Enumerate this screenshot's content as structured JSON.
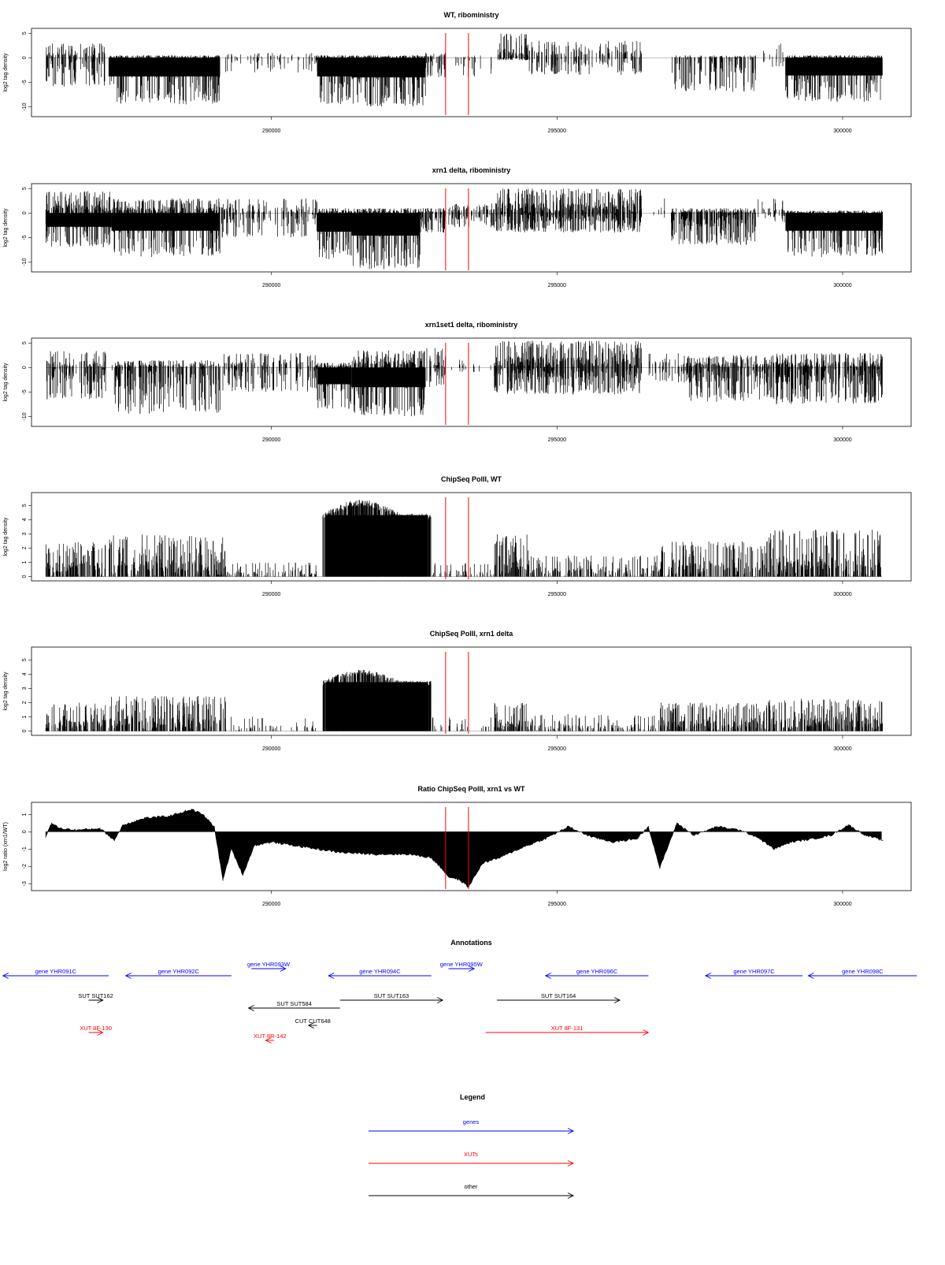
{
  "chart_data": [
    {
      "type": "bar",
      "title": "WT, riboministry",
      "ylabel": "log2 tag density",
      "yticks": [
        5,
        0,
        -5,
        -10
      ],
      "ylim": [
        -12,
        6
      ],
      "xlim": [
        285800,
        301200
      ],
      "xticks": [
        290000,
        295000,
        300000
      ],
      "xtick_labels": [
        "290000",
        "295000",
        "300000"
      ],
      "red_lines": [
        293050,
        293450
      ],
      "regions": [
        {
          "start": 286050,
          "end": 287100,
          "max": 3,
          "min": -6,
          "density": 0.55
        },
        {
          "start": 287150,
          "end": 289100,
          "max": 0.5,
          "min": -9.5,
          "density": 0.95
        },
        {
          "start": 289150,
          "end": 290800,
          "max": 1,
          "min": -3,
          "density": 0.2
        },
        {
          "start": 290800,
          "end": 291400,
          "max": 0.5,
          "min": -9.5,
          "density": 1.0
        },
        {
          "start": 291400,
          "end": 292700,
          "max": 0.5,
          "min": -10,
          "density": 1.0
        },
        {
          "start": 292700,
          "end": 293050,
          "max": 1,
          "min": -4,
          "density": 0.6
        },
        {
          "start": 293100,
          "end": 293900,
          "max": 0.5,
          "min": -4,
          "density": 0.15
        },
        {
          "start": 293950,
          "end": 294500,
          "max": 5,
          "min": -0.5,
          "density": 0.8
        },
        {
          "start": 294500,
          "end": 296500,
          "max": 3.5,
          "min": -3.5,
          "density": 0.4
        },
        {
          "start": 297000,
          "end": 298500,
          "max": 0.5,
          "min": -7,
          "density": 0.55
        },
        {
          "start": 298500,
          "end": 299000,
          "max": 3,
          "min": -2,
          "density": 0.15
        },
        {
          "start": 299000,
          "end": 300700,
          "max": 0.5,
          "min": -9,
          "density": 0.95
        }
      ]
    },
    {
      "type": "bar",
      "title": "xrn1 delta, riboministry",
      "ylabel": "log2 tag density",
      "yticks": [
        5,
        0,
        -5,
        -10
      ],
      "ylim": [
        -12,
        6
      ],
      "xlim": [
        285800,
        301200
      ],
      "xticks": [
        290000,
        295000,
        300000
      ],
      "xtick_labels": [
        "290000",
        "295000",
        "300000"
      ],
      "red_lines": [
        293050,
        293450
      ],
      "regions": [
        {
          "start": 286050,
          "end": 287200,
          "max": 4.5,
          "min": -7,
          "density": 0.95
        },
        {
          "start": 287200,
          "end": 289100,
          "max": 3,
          "min": -9,
          "density": 0.95
        },
        {
          "start": 289100,
          "end": 290800,
          "max": 3,
          "min": -5,
          "density": 0.45
        },
        {
          "start": 290800,
          "end": 291400,
          "max": 1,
          "min": -9.5,
          "density": 1.0
        },
        {
          "start": 291400,
          "end": 292600,
          "max": 1,
          "min": -11.5,
          "density": 1.0
        },
        {
          "start": 292600,
          "end": 293050,
          "max": 1,
          "min": -4,
          "density": 0.8
        },
        {
          "start": 293100,
          "end": 293900,
          "max": 2,
          "min": -3,
          "density": 0.5
        },
        {
          "start": 293900,
          "end": 296500,
          "max": 5,
          "min": -4,
          "density": 0.95
        },
        {
          "start": 296600,
          "end": 297000,
          "max": 3,
          "min": -1,
          "density": 0.1
        },
        {
          "start": 297000,
          "end": 298500,
          "max": 1,
          "min": -6.5,
          "density": 0.9
        },
        {
          "start": 298500,
          "end": 299000,
          "max": 3,
          "min": -2,
          "density": 0.3
        },
        {
          "start": 299000,
          "end": 300700,
          "max": 0.5,
          "min": -9,
          "density": 0.95
        }
      ]
    },
    {
      "type": "bar",
      "title": "xrn1set1 delta, riboministry",
      "ylabel": "log2 tag density",
      "yticks": [
        5,
        0,
        -5,
        -10
      ],
      "ylim": [
        -12,
        6
      ],
      "xlim": [
        285800,
        301200
      ],
      "xticks": [
        290000,
        295000,
        300000
      ],
      "xtick_labels": [
        "290000",
        "295000",
        "300000"
      ],
      "red_lines": [
        293050,
        293450
      ],
      "regions": [
        {
          "start": 286050,
          "end": 287100,
          "max": 3.5,
          "min": -6.5,
          "density": 0.6
        },
        {
          "start": 287200,
          "end": 289100,
          "max": 1.5,
          "min": -9.5,
          "density": 0.7
        },
        {
          "start": 289100,
          "end": 290800,
          "max": 3,
          "min": -5,
          "density": 0.45
        },
        {
          "start": 290800,
          "end": 291400,
          "max": 1,
          "min": -8.5,
          "density": 0.95
        },
        {
          "start": 291400,
          "end": 292700,
          "max": 3.5,
          "min": -10,
          "density": 0.95
        },
        {
          "start": 292700,
          "end": 293050,
          "max": 4,
          "min": -4,
          "density": 0.5
        },
        {
          "start": 293100,
          "end": 293900,
          "max": 2,
          "min": -1,
          "density": 0.1
        },
        {
          "start": 293900,
          "end": 296500,
          "max": 5.5,
          "min": -5.5,
          "density": 0.9
        },
        {
          "start": 296600,
          "end": 297200,
          "max": 3,
          "min": -3,
          "density": 0.35
        },
        {
          "start": 297200,
          "end": 298800,
          "max": 2.5,
          "min": -7,
          "density": 0.8
        },
        {
          "start": 298800,
          "end": 300700,
          "max": 3,
          "min": -7.5,
          "density": 0.9
        }
      ]
    },
    {
      "type": "bar",
      "title": "ChipSeq PolII, WT",
      "ylabel": "log2 tag density",
      "yticks": [
        0,
        1,
        2,
        3,
        4,
        5
      ],
      "ylim": [
        -0.3,
        5.9
      ],
      "xlim": [
        285800,
        301200
      ],
      "xticks": [
        290000,
        295000,
        300000
      ],
      "xtick_labels": [
        "290000",
        "295000",
        "300000"
      ],
      "red_lines": [
        293050,
        293450
      ],
      "regions": [
        {
          "start": 286050,
          "end": 287100,
          "max": 2.5,
          "min": 0,
          "density": 0.8
        },
        {
          "start": 287150,
          "end": 289200,
          "max": 3,
          "min": 0,
          "density": 0.8
        },
        {
          "start": 289200,
          "end": 290800,
          "max": 1,
          "min": 0,
          "density": 0.35
        },
        {
          "start": 290900,
          "end": 292800,
          "max": 5.4,
          "min": 0,
          "density": 1.0,
          "dome": true
        },
        {
          "start": 292800,
          "end": 293900,
          "max": 1,
          "min": 0,
          "density": 0.3
        },
        {
          "start": 293900,
          "end": 294500,
          "max": 3,
          "min": 0,
          "density": 0.9
        },
        {
          "start": 294500,
          "end": 296800,
          "max": 1.5,
          "min": 0,
          "density": 0.5
        },
        {
          "start": 296800,
          "end": 298700,
          "max": 2.5,
          "min": 0,
          "density": 0.7
        },
        {
          "start": 298700,
          "end": 300700,
          "max": 3.3,
          "min": 0,
          "density": 0.85
        }
      ]
    },
    {
      "type": "bar",
      "title": "ChipSeq PolII, xrn1 delta",
      "ylabel": "log2 tag density",
      "yticks": [
        0,
        1,
        2,
        3,
        4,
        5
      ],
      "ylim": [
        -0.3,
        5.9
      ],
      "xlim": [
        285800,
        301200
      ],
      "xticks": [
        290000,
        295000,
        300000
      ],
      "xtick_labels": [
        "290000",
        "295000",
        "300000"
      ],
      "red_lines": [
        293050,
        293450
      ],
      "regions": [
        {
          "start": 286050,
          "end": 287100,
          "max": 2,
          "min": 0,
          "density": 0.8
        },
        {
          "start": 287150,
          "end": 289200,
          "max": 2.5,
          "min": 0,
          "density": 0.8
        },
        {
          "start": 289200,
          "end": 290800,
          "max": 1,
          "min": 0,
          "density": 0.2
        },
        {
          "start": 290900,
          "end": 292800,
          "max": 4.3,
          "min": 0,
          "density": 1.0,
          "dome": true
        },
        {
          "start": 292800,
          "end": 293900,
          "max": 1,
          "min": 0,
          "density": 0.15
        },
        {
          "start": 293900,
          "end": 294500,
          "max": 2,
          "min": 0,
          "density": 0.9
        },
        {
          "start": 294500,
          "end": 296800,
          "max": 1.2,
          "min": 0,
          "density": 0.4
        },
        {
          "start": 296800,
          "end": 298700,
          "max": 2,
          "min": 0,
          "density": 0.8
        },
        {
          "start": 298700,
          "end": 300700,
          "max": 2.3,
          "min": 0,
          "density": 0.85
        }
      ]
    },
    {
      "type": "area",
      "title": "Ratio ChipSeq PolII, xrn1 vs WT",
      "ylabel": "log2 ratio (xrn1/WT)",
      "yticks": [
        1,
        0,
        -1,
        -2,
        -3
      ],
      "ylim": [
        -3.4,
        1.7
      ],
      "xlim": [
        285800,
        301200
      ],
      "xticks": [
        290000,
        295000,
        300000
      ],
      "xtick_labels": [
        "290000",
        "295000",
        "300000"
      ],
      "red_lines": [
        293050,
        293450
      ],
      "x": [
        286050,
        286150,
        286300,
        286600,
        287000,
        287250,
        287400,
        287600,
        287800,
        288200,
        288600,
        288800,
        289000,
        289150,
        289300,
        289500,
        289700,
        290000,
        290400,
        290800,
        291200,
        291800,
        292400,
        292800,
        293000,
        293100,
        293300,
        293450,
        293700,
        294000,
        294400,
        294800,
        295200,
        295600,
        296000,
        296400,
        296600,
        296800,
        297100,
        297400,
        297800,
        298200,
        298500,
        298800,
        299100,
        299500,
        299800,
        300100,
        300400,
        300700
      ],
      "y": [
        -0.3,
        0.5,
        0.2,
        0.1,
        0.2,
        -0.5,
        0.4,
        0.6,
        0.8,
        0.9,
        1.3,
        1.0,
        0.3,
        -2.8,
        -1.0,
        -2.5,
        -0.8,
        -0.6,
        -0.8,
        -1.0,
        -1.2,
        -1.3,
        -1.3,
        -1.5,
        -2.2,
        -2.6,
        -2.8,
        -3.2,
        -1.8,
        -1.5,
        -0.9,
        -0.4,
        0.3,
        -0.3,
        -0.6,
        -0.4,
        0.3,
        -2.1,
        0.5,
        -0.2,
        0.3,
        0.1,
        -0.3,
        -1.0,
        -0.6,
        -0.4,
        -0.2,
        0.4,
        -0.2,
        -0.5
      ]
    }
  ],
  "annotations": {
    "title": "Annotations",
    "xlim": [
      285800,
      301200
    ],
    "rows": [
      {
        "y": 1238,
        "features": [
          {
            "label": "gene YHR091C",
            "start": 285300,
            "end": 287150,
            "dir": "left",
            "kind": "gene"
          },
          {
            "label": "gene YHR092C",
            "start": 287450,
            "end": 289300,
            "dir": "left",
            "kind": "gene"
          },
          {
            "label": "gene YHR094C",
            "start": 291000,
            "end": 292800,
            "dir": "left",
            "kind": "gene"
          },
          {
            "label": "gene YHR096C",
            "start": 294800,
            "end": 296600,
            "dir": "left",
            "kind": "gene"
          },
          {
            "label": "gene YHR097C",
            "start": 297600,
            "end": 299300,
            "dir": "left",
            "kind": "gene"
          },
          {
            "label": "gene YHR098C",
            "start": 299400,
            "end": 301300,
            "dir": "left",
            "kind": "gene"
          }
        ]
      },
      {
        "y": 1229,
        "features": [
          {
            "label": "gene YHR093W",
            "start": 289650,
            "end": 290250,
            "dir": "right",
            "kind": "gene"
          },
          {
            "label": "gene YHR095W",
            "start": 293100,
            "end": 293550,
            "dir": "right",
            "kind": "gene"
          }
        ]
      },
      {
        "y": 1269,
        "features": [
          {
            "label": "SUT SUT162",
            "start": 286800,
            "end": 287050,
            "dir": "right",
            "kind": "other"
          },
          {
            "label": "SUT SUT163",
            "start": 291200,
            "end": 293000,
            "dir": "right",
            "kind": "other"
          },
          {
            "label": "SUT SUT164",
            "start": 293950,
            "end": 296100,
            "dir": "right",
            "kind": "other"
          }
        ]
      },
      {
        "y": 1279,
        "features": [
          {
            "label": "SUT SUT584",
            "start": 289600,
            "end": 291200,
            "dir": "left",
            "kind": "other"
          }
        ]
      },
      {
        "y": 1301,
        "features": [
          {
            "label": "CUT CUT648",
            "start": 290650,
            "end": 290800,
            "dir": "left",
            "kind": "other"
          }
        ]
      },
      {
        "y": 1310,
        "features": [
          {
            "label": "XUT 8F-130",
            "start": 286800,
            "end": 287050,
            "dir": "right",
            "kind": "xut"
          },
          {
            "label": "XUT 8F-131",
            "start": 293750,
            "end": 296600,
            "dir": "right",
            "kind": "xut"
          }
        ]
      },
      {
        "y": 1320,
        "features": [
          {
            "label": "XUT 8R-142",
            "start": 289900,
            "end": 290050,
            "dir": "left",
            "kind": "xut"
          }
        ]
      }
    ]
  },
  "legend": {
    "title": "Legend",
    "items": [
      {
        "label": "genes",
        "kind": "gene"
      },
      {
        "label": "XUTs",
        "kind": "xut"
      },
      {
        "label": "other",
        "kind": "other"
      }
    ]
  },
  "colors": {
    "gene": "#0000ff",
    "xut": "#ff0000",
    "other": "#000000",
    "marker": "#ff0000",
    "bars": "#000000"
  }
}
